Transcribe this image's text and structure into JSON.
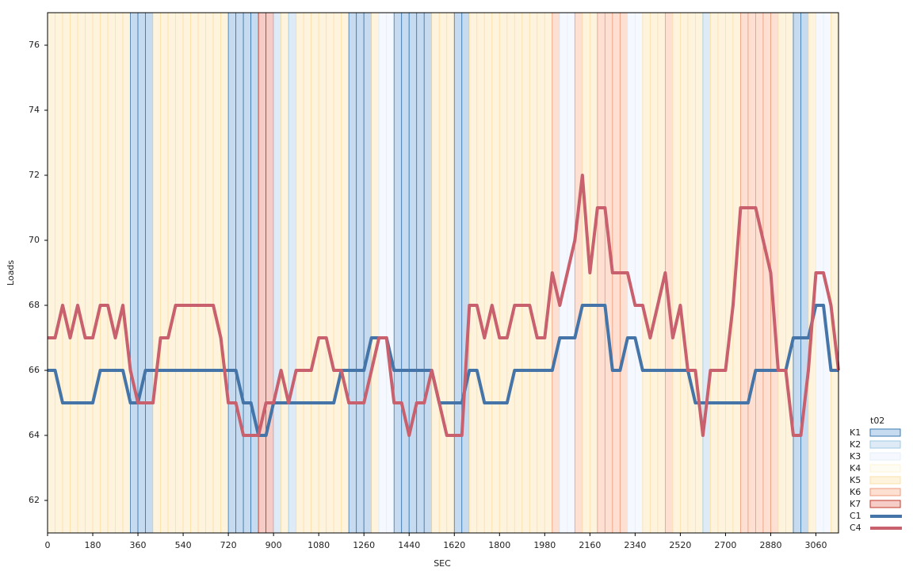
{
  "chart_data": {
    "type": "line",
    "x_label": "SEC",
    "y_label": "Loads",
    "x": [
      0,
      30,
      60,
      90,
      120,
      150,
      180,
      210,
      240,
      270,
      300,
      330,
      360,
      390,
      420,
      450,
      480,
      510,
      540,
      570,
      600,
      630,
      660,
      690,
      720,
      750,
      780,
      810,
      840,
      870,
      900,
      930,
      960,
      990,
      1020,
      1050,
      1080,
      1110,
      1140,
      1170,
      1200,
      1230,
      1260,
      1290,
      1320,
      1350,
      1380,
      1410,
      1440,
      1470,
      1500,
      1530,
      1560,
      1590,
      1620,
      1650,
      1680,
      1710,
      1740,
      1770,
      1800,
      1830,
      1860,
      1890,
      1920,
      1950,
      1980,
      2010,
      2040,
      2070,
      2100,
      2130,
      2160,
      2190,
      2220,
      2250,
      2280,
      2310,
      2340,
      2370,
      2400,
      2430,
      2460,
      2490,
      2520,
      2550,
      2580,
      2610,
      2640,
      2670,
      2700,
      2730,
      2760,
      2790,
      2820,
      2850,
      2880,
      2910,
      2940,
      2970,
      3000,
      3030,
      3060,
      3090,
      3120,
      3150
    ],
    "xlim": [
      0,
      3150
    ],
    "ylim": [
      61,
      77
    ],
    "xticks": [
      0,
      180,
      360,
      540,
      720,
      900,
      1080,
      1260,
      1440,
      1620,
      1800,
      1980,
      2160,
      2340,
      2520,
      2700,
      2880,
      3060
    ],
    "yticks": [
      62,
      64,
      66,
      68,
      70,
      72,
      74,
      76
    ],
    "legend_title": "t02",
    "band_series": [
      {
        "name": "K1",
        "color": "#c6dbef",
        "edge": "#3b78b0"
      },
      {
        "name": "K2",
        "color": "#deebf7",
        "edge": "#9ecae1"
      },
      {
        "name": "K3",
        "color": "#f5f9ff",
        "edge": "#e3eef9"
      },
      {
        "name": "K4",
        "color": "#fffdf3",
        "edge": "#fff3d6"
      },
      {
        "name": "K5",
        "color": "#fef3dc",
        "edge": "#fde0a8"
      },
      {
        "name": "K6",
        "color": "#fde0d2",
        "edge": "#ef9a7a"
      },
      {
        "name": "K7",
        "color": "#f6cdc6",
        "edge": "#c0392b"
      }
    ],
    "bands": [
      "K5",
      "K5",
      "K5",
      "K5",
      "K5",
      "K5",
      "K5",
      "K5",
      "K5",
      "K5",
      "K5",
      "K1",
      "K1",
      "K1",
      "K5",
      "K5",
      "K5",
      "K5",
      "K5",
      "K5",
      "K5",
      "K5",
      "K5",
      "K5",
      "K1",
      "K1",
      "K1",
      "K1",
      "K7",
      "K7",
      "K2",
      "K5",
      "K2",
      "K5",
      "K5",
      "K5",
      "K5",
      "K5",
      "K5",
      "K5",
      "K1",
      "K1",
      "K1",
      "K5",
      "K3",
      "K3",
      "K1",
      "K1",
      "K1",
      "K1",
      "K1",
      "K5",
      "K5",
      "K5",
      "K1",
      "K1",
      "K5",
      "K5",
      "K5",
      "K5",
      "K5",
      "K5",
      "K5",
      "K5",
      "K5",
      "K5",
      "K5",
      "K6",
      "K3",
      "K3",
      "K6",
      "K5",
      "K5",
      "K6",
      "K6",
      "K6",
      "K6",
      "K3",
      "K3",
      "K5",
      "K5",
      "K5",
      "K6",
      "K5",
      "K5",
      "K5",
      "K5",
      "K2",
      "K5",
      "K5",
      "K5",
      "K5",
      "K6",
      "K6",
      "K6",
      "K6",
      "K6",
      "K5",
      "K5",
      "K1",
      "K1",
      "K5",
      "K3",
      "K3",
      "K5"
    ],
    "series": [
      {
        "name": "C1",
        "color": "#4575a8",
        "values": [
          66,
          66,
          65,
          65,
          65,
          65,
          65,
          66,
          66,
          66,
          66,
          65,
          65,
          66,
          66,
          66,
          66,
          66,
          66,
          66,
          66,
          66,
          66,
          66,
          66,
          66,
          65,
          65,
          64,
          64,
          65,
          65,
          65,
          65,
          65,
          65,
          65,
          65,
          65,
          66,
          66,
          66,
          66,
          67,
          67,
          67,
          66,
          66,
          66,
          66,
          66,
          66,
          65,
          65,
          65,
          65,
          66,
          66,
          65,
          65,
          65,
          65,
          66,
          66,
          66,
          66,
          66,
          66,
          67,
          67,
          67,
          68,
          68,
          68,
          68,
          66,
          66,
          67,
          67,
          66,
          66,
          66,
          66,
          66,
          66,
          66,
          65,
          65,
          65,
          65,
          65,
          65,
          65,
          65,
          66,
          66,
          66,
          66,
          66,
          67,
          67,
          67,
          68,
          68,
          66,
          66
        ]
      },
      {
        "name": "C4",
        "color": "#c8606e",
        "values": [
          67,
          67,
          68,
          67,
          68,
          67,
          67,
          68,
          68,
          67,
          68,
          66,
          65,
          65,
          65,
          67,
          67,
          68,
          68,
          68,
          68,
          68,
          68,
          67,
          65,
          65,
          64,
          64,
          64,
          65,
          65,
          66,
          65,
          66,
          66,
          66,
          67,
          67,
          66,
          66,
          65,
          65,
          65,
          66,
          67,
          67,
          65,
          65,
          64,
          65,
          65,
          66,
          65,
          64,
          64,
          64,
          68,
          68,
          67,
          68,
          67,
          67,
          68,
          68,
          68,
          67,
          67,
          69,
          68,
          69,
          70,
          72,
          69,
          71,
          71,
          69,
          69,
          69,
          68,
          68,
          67,
          68,
          69,
          67,
          68,
          66,
          66,
          64,
          66,
          66,
          66,
          68,
          71,
          71,
          71,
          70,
          69,
          66,
          66,
          64,
          64,
          66,
          69,
          69,
          68,
          66
        ]
      }
    ]
  }
}
